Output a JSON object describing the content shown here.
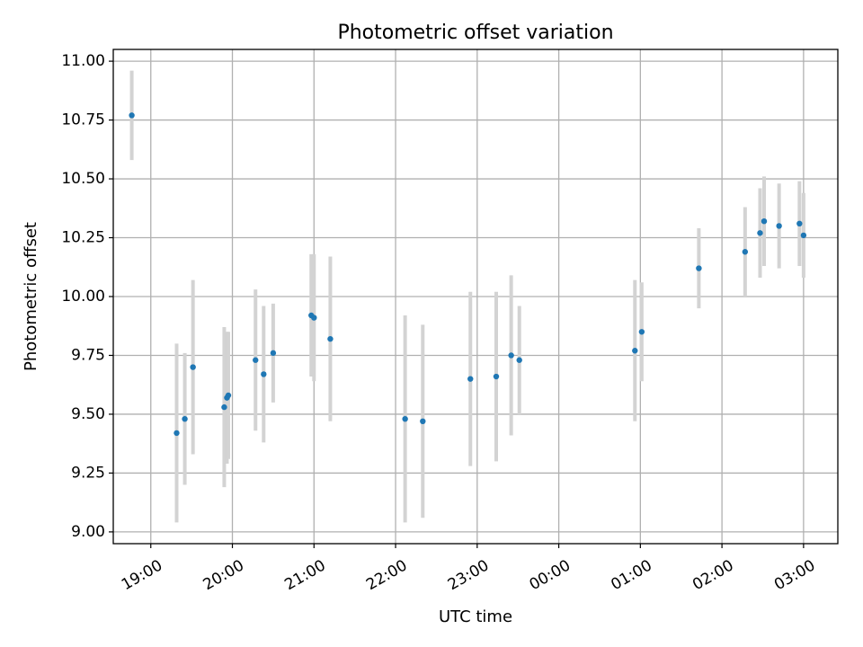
{
  "chart_data": {
    "type": "scatter",
    "title": "Photometric offset variation",
    "xlabel": "UTC time",
    "ylabel": "Photometric offset",
    "x_tick_labels": [
      "19:00",
      "20:00",
      "21:00",
      "22:00",
      "23:00",
      "00:00",
      "01:00",
      "02:00",
      "03:00"
    ],
    "x_tick_hours": [
      19,
      20,
      21,
      22,
      23,
      24,
      25,
      26,
      27
    ],
    "xlim_hours": [
      18.54,
      27.42
    ],
    "y_ticks": [
      9.0,
      9.25,
      9.5,
      9.75,
      10.0,
      10.25,
      10.5,
      10.75,
      11.0
    ],
    "ylim": [
      8.95,
      11.05
    ],
    "grid": true,
    "colors": {
      "point": "#1f77b4",
      "errorbar": "#d3d3d3",
      "grid": "#b0b0b0"
    },
    "series": [
      {
        "points": [
          {
            "x": "18:46",
            "y": 10.77,
            "err": 0.19
          },
          {
            "x": "19:19",
            "y": 9.42,
            "err": 0.38
          },
          {
            "x": "19:25",
            "y": 9.48,
            "err": 0.28
          },
          {
            "x": "19:31",
            "y": 9.7,
            "err": 0.37
          },
          {
            "x": "19:54",
            "y": 9.53,
            "err": 0.34
          },
          {
            "x": "19:56",
            "y": 9.57,
            "err": 0.28
          },
          {
            "x": "19:57",
            "y": 9.58,
            "err": 0.27
          },
          {
            "x": "20:17",
            "y": 9.73,
            "err": 0.3
          },
          {
            "x": "20:23",
            "y": 9.67,
            "err": 0.29
          },
          {
            "x": "20:30",
            "y": 9.76,
            "err": 0.21
          },
          {
            "x": "20:58",
            "y": 9.92,
            "err": 0.26
          },
          {
            "x": "21:00",
            "y": 9.91,
            "err": 0.27
          },
          {
            "x": "21:12",
            "y": 9.82,
            "err": 0.35
          },
          {
            "x": "22:07",
            "y": 9.48,
            "err": 0.44
          },
          {
            "x": "22:20",
            "y": 9.47,
            "err": 0.41
          },
          {
            "x": "22:55",
            "y": 9.65,
            "err": 0.37
          },
          {
            "x": "23:14",
            "y": 9.66,
            "err": 0.36
          },
          {
            "x": "23:25",
            "y": 9.75,
            "err": 0.34
          },
          {
            "x": "23:31",
            "y": 9.73,
            "err": 0.23
          },
          {
            "x": "00:56",
            "y": 9.77,
            "err": 0.3
          },
          {
            "x": "01:01",
            "y": 9.85,
            "err": 0.21
          },
          {
            "x": "01:43",
            "y": 10.12,
            "err": 0.17
          },
          {
            "x": "02:17",
            "y": 10.19,
            "err": 0.19
          },
          {
            "x": "02:28",
            "y": 10.27,
            "err": 0.19
          },
          {
            "x": "02:31",
            "y": 10.32,
            "err": 0.19
          },
          {
            "x": "02:42",
            "y": 10.3,
            "err": 0.18
          },
          {
            "x": "02:57",
            "y": 10.31,
            "err": 0.18
          },
          {
            "x": "03:00",
            "y": 10.26,
            "err": 0.18
          }
        ]
      }
    ]
  }
}
